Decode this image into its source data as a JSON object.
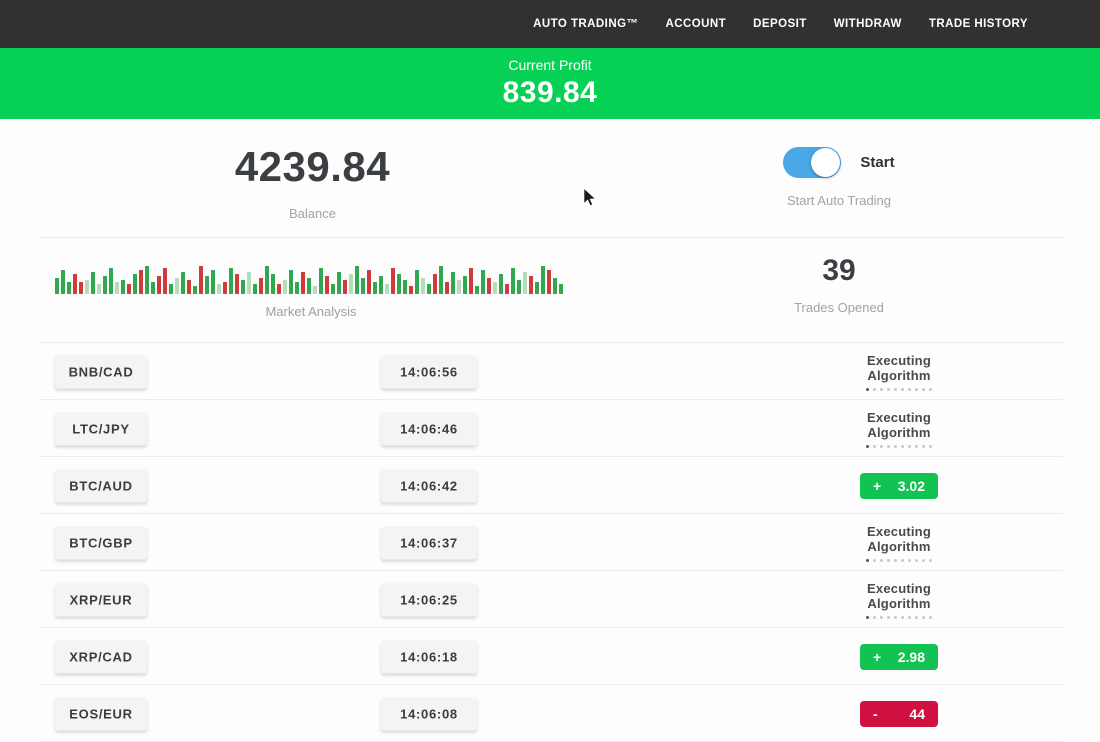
{
  "nav": {
    "items": [
      {
        "label": "AUTO TRADING™"
      },
      {
        "label": "ACCOUNT"
      },
      {
        "label": "DEPOSIT"
      },
      {
        "label": "WITHDRAW"
      },
      {
        "label": "TRADE HISTORY"
      }
    ]
  },
  "banner": {
    "title": "Current Profit",
    "value": "839.84",
    "bg_color": "#07d154"
  },
  "account": {
    "balance": "4239.84",
    "balance_label": "Balance"
  },
  "auto_trading": {
    "toggle_state": "on",
    "toggle_color": "#49a8e7",
    "toggle_label": "Start",
    "caption": "Start Auto Trading"
  },
  "trades_opened": {
    "value": "39",
    "label": "Trades Opened"
  },
  "status_colors": {
    "profit": "#12c353",
    "loss": "#d11042"
  },
  "chart_data": {
    "type": "bar",
    "title": "Market Analysis",
    "note": "decorative mini candlestick-style market analysis strip; bars encoded as colorCode+heightPx, bottom-aligned, no axes",
    "colors": {
      "g": "#2fa84f",
      "G": "#b5dcb8",
      "r": "#d03a3a",
      "R": "#e7b6b3"
    },
    "bars": [
      "g16",
      "g24",
      "g12",
      "r20",
      "r12",
      "G14",
      "g22",
      "G10",
      "g18",
      "g26",
      "G12",
      "g14",
      "r10",
      "g20",
      "r24",
      "g28",
      "g12",
      "r18",
      "r26",
      "g10",
      "G16",
      "g22",
      "r14",
      "g8",
      "r28",
      "g18",
      "g24",
      "G10",
      "r12",
      "g26",
      "r20",
      "g14",
      "G22",
      "g10",
      "r16",
      "g28",
      "g20",
      "r10",
      "G14",
      "g24",
      "g12",
      "r22",
      "g16",
      "G8",
      "g26",
      "r18",
      "g10",
      "g22",
      "r14",
      "G20",
      "g28",
      "g16",
      "r24",
      "g12",
      "g18",
      "G10",
      "r26",
      "g20",
      "g14",
      "r8",
      "g24",
      "G16",
      "g10",
      "r20",
      "g28",
      "r12",
      "g22",
      "G14",
      "g18",
      "r26",
      "g8",
      "g24",
      "r16",
      "G12",
      "g20",
      "r10",
      "g26",
      "g14",
      "G22",
      "r18",
      "g12",
      "g28",
      "r24",
      "g16",
      "g10"
    ]
  },
  "trades": [
    {
      "pair": "BNB/CAD",
      "time": "14:06:56",
      "status": {
        "type": "executing",
        "label": "Executing Algorithm"
      }
    },
    {
      "pair": "LTC/JPY",
      "time": "14:06:46",
      "status": {
        "type": "executing",
        "label": "Executing Algorithm"
      }
    },
    {
      "pair": "BTC/AUD",
      "time": "14:06:42",
      "status": {
        "type": "profit",
        "sign": "+",
        "value": "3.02"
      }
    },
    {
      "pair": "BTC/GBP",
      "time": "14:06:37",
      "status": {
        "type": "executing",
        "label": "Executing Algorithm"
      }
    },
    {
      "pair": "XRP/EUR",
      "time": "14:06:25",
      "status": {
        "type": "executing",
        "label": "Executing Algorithm"
      }
    },
    {
      "pair": "XRP/CAD",
      "time": "14:06:18",
      "status": {
        "type": "profit",
        "sign": "+",
        "value": "2.98"
      }
    },
    {
      "pair": "EOS/EUR",
      "time": "14:06:08",
      "status": {
        "type": "loss",
        "sign": "-",
        "value": "44"
      }
    }
  ]
}
